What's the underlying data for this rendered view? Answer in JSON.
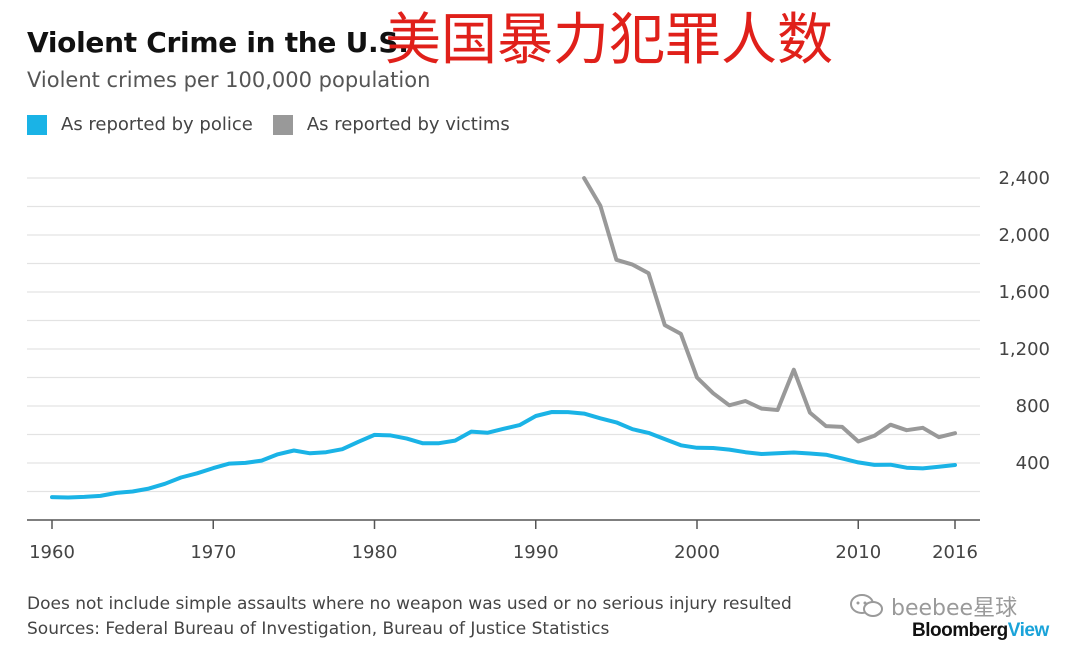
{
  "header": {
    "title": "Violent Crime in the U.S.",
    "overlay_text": "美国暴力犯罪人数",
    "subtitle": "Violent crimes per 100,000 population"
  },
  "legend": [
    {
      "label": "As reported by police",
      "color": "#1ab3e6"
    },
    {
      "label": "As reported by victims",
      "color": "#999999"
    }
  ],
  "footer": {
    "note": "Does not include simple assaults where no weapon was used or no serious injury resulted",
    "sources": "Sources: Federal Bureau of Investigation, Bureau of Justice Statistics",
    "brand_main": "Bloomberg",
    "brand_accent": "View",
    "watermark": "beebee星球"
  },
  "chart_data": {
    "type": "line",
    "title": "Violent Crime in the U.S.",
    "ylabel": "Violent crimes per 100,000 population",
    "xlim": [
      1960,
      2016
    ],
    "ylim": [
      0,
      2400
    ],
    "y_ticks": [
      400,
      800,
      1200,
      1600,
      2000,
      2400
    ],
    "y_tick_labels": [
      "400",
      "800",
      "1,200",
      "1,600",
      "2,000",
      "2,400"
    ],
    "x_ticks": [
      1960,
      1970,
      1980,
      1990,
      2000,
      2010,
      2016
    ],
    "x_tick_labels": [
      "1960",
      "1970",
      "1980",
      "1990",
      "2000",
      "2010",
      "2016"
    ],
    "series": [
      {
        "name": "As reported by police",
        "color": "#1ab3e6",
        "x": [
          1960,
          1961,
          1962,
          1963,
          1964,
          1965,
          1966,
          1967,
          1968,
          1969,
          1970,
          1971,
          1972,
          1973,
          1974,
          1975,
          1976,
          1977,
          1978,
          1979,
          1980,
          1981,
          1982,
          1983,
          1984,
          1985,
          1986,
          1987,
          1988,
          1989,
          1990,
          1991,
          1992,
          1993,
          1994,
          1995,
          1996,
          1997,
          1998,
          1999,
          2000,
          2001,
          2002,
          2003,
          2004,
          2005,
          2006,
          2007,
          2008,
          2009,
          2010,
          2011,
          2012,
          2013,
          2014,
          2015,
          2016
        ],
        "values": [
          161,
          158,
          162,
          169,
          190,
          200,
          220,
          254,
          298,
          328,
          364,
          396,
          401,
          417,
          461,
          488,
          468,
          476,
          497,
          549,
          597,
          594,
          571,
          538,
          539,
          557,
          620,
          612,
          640,
          666,
          730,
          758,
          757,
          747,
          714,
          685,
          637,
          611,
          568,
          524,
          507,
          505,
          494,
          476,
          463,
          469,
          474,
          467,
          458,
          432,
          404,
          387,
          388,
          367,
          362,
          373,
          386
        ]
      },
      {
        "name": "As reported by victims",
        "color": "#999999",
        "x": [
          1993,
          1994,
          1995,
          1996,
          1997,
          1998,
          1999,
          2000,
          2001,
          2002,
          2003,
          2004,
          2005,
          2006,
          2007,
          2008,
          2009,
          2010,
          2011,
          2012,
          2013,
          2014,
          2015,
          2016
        ],
        "values": [
          2399,
          2206,
          1826,
          1792,
          1731,
          1368,
          1306,
          1000,
          890,
          805,
          835,
          782,
          772,
          1055,
          754,
          659,
          653,
          551,
          591,
          669,
          630,
          647,
          581,
          609
        ]
      }
    ],
    "grid": true,
    "y_axis_side": "right",
    "legend_position": "top-left"
  }
}
